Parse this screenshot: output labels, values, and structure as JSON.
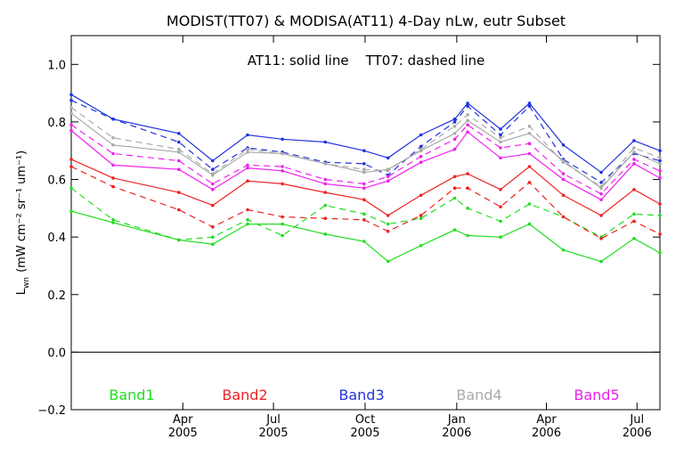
{
  "chart_data": {
    "type": "line",
    "title": "MODIST(TT07) & MODISA(AT11) 4-Day nLw, eutr Subset",
    "annotation": "AT11: solid line    TT07: dashed line",
    "ylabel_main": "L",
    "ylabel_sub": "wn",
    "ylabel_units": "(mW cm⁻² sr⁻¹ um⁻¹)",
    "ylim": [
      -0.2,
      1.1
    ],
    "yticks": [
      {
        "v": -0.2,
        "label": "−0.2"
      },
      {
        "v": 0.0,
        "label": "0.0"
      },
      {
        "v": 0.2,
        "label": "0.2"
      },
      {
        "v": 0.4,
        "label": "0.4"
      },
      {
        "v": 0.6,
        "label": "0.6"
      },
      {
        "v": 0.8,
        "label": "0.8"
      },
      {
        "v": 1.0,
        "label": "1.0"
      }
    ],
    "xlim": [
      "2004-12-10",
      "2006-07-24"
    ],
    "xticks": [
      {
        "date": "2005-04-01",
        "month": "Apr",
        "year": "2005"
      },
      {
        "date": "2005-07-01",
        "month": "Jul",
        "year": "2005"
      },
      {
        "date": "2005-10-01",
        "month": "Oct",
        "year": "2005"
      },
      {
        "date": "2006-01-01",
        "month": "Jan",
        "year": "2006"
      },
      {
        "date": "2006-04-01",
        "month": "Apr",
        "year": "2006"
      },
      {
        "date": "2006-07-01",
        "month": "Jul",
        "year": "2006"
      }
    ],
    "zero_line": 0.0,
    "series": [
      {
        "name": "Band1",
        "color": "#22dd22",
        "solid": [
          [
            "2004-12-10",
            0.49
          ],
          [
            "2005-01-21",
            0.45
          ],
          [
            "2005-03-28",
            0.39
          ],
          [
            "2005-05-01",
            0.375
          ],
          [
            "2005-06-05",
            0.445
          ],
          [
            "2005-07-10",
            0.445
          ],
          [
            "2005-08-22",
            0.41
          ],
          [
            "2005-09-30",
            0.385
          ],
          [
            "2005-10-24",
            0.315
          ],
          [
            "2005-11-26",
            0.37
          ],
          [
            "2005-12-30",
            0.425
          ],
          [
            "2006-01-12",
            0.405
          ],
          [
            "2006-02-14",
            0.4
          ],
          [
            "2006-03-15",
            0.445
          ],
          [
            "2006-04-18",
            0.355
          ],
          [
            "2006-05-26",
            0.315
          ],
          [
            "2006-06-28",
            0.395
          ],
          [
            "2006-07-24",
            0.345
          ]
        ],
        "dashed": [
          [
            "2004-12-10",
            0.57
          ],
          [
            "2005-01-21",
            0.46
          ],
          [
            "2005-03-28",
            0.39
          ],
          [
            "2005-05-01",
            0.4
          ],
          [
            "2005-06-05",
            0.46
          ],
          [
            "2005-07-10",
            0.405
          ],
          [
            "2005-08-22",
            0.51
          ],
          [
            "2005-09-30",
            0.48
          ],
          [
            "2005-10-24",
            0.445
          ],
          [
            "2005-11-26",
            0.465
          ],
          [
            "2005-12-30",
            0.535
          ],
          [
            "2006-01-12",
            0.5
          ],
          [
            "2006-02-14",
            0.455
          ],
          [
            "2006-03-15",
            0.515
          ],
          [
            "2006-04-18",
            0.47
          ],
          [
            "2006-05-26",
            0.4
          ],
          [
            "2006-06-28",
            0.48
          ],
          [
            "2006-07-24",
            0.475
          ]
        ]
      },
      {
        "name": "Band2",
        "color": "#ee2222",
        "solid": [
          [
            "2004-12-10",
            0.67
          ],
          [
            "2005-01-21",
            0.605
          ],
          [
            "2005-03-28",
            0.555
          ],
          [
            "2005-05-01",
            0.51
          ],
          [
            "2005-06-05",
            0.595
          ],
          [
            "2005-07-10",
            0.585
          ],
          [
            "2005-08-22",
            0.555
          ],
          [
            "2005-09-30",
            0.53
          ],
          [
            "2005-10-24",
            0.475
          ],
          [
            "2005-11-26",
            0.545
          ],
          [
            "2005-12-30",
            0.61
          ],
          [
            "2006-01-12",
            0.62
          ],
          [
            "2006-02-14",
            0.565
          ],
          [
            "2006-03-15",
            0.645
          ],
          [
            "2006-04-18",
            0.545
          ],
          [
            "2006-05-26",
            0.475
          ],
          [
            "2006-06-28",
            0.565
          ],
          [
            "2006-07-24",
            0.515
          ]
        ],
        "dashed": [
          [
            "2004-12-10",
            0.645
          ],
          [
            "2005-01-21",
            0.575
          ],
          [
            "2005-03-28",
            0.495
          ],
          [
            "2005-05-01",
            0.435
          ],
          [
            "2005-06-05",
            0.495
          ],
          [
            "2005-07-10",
            0.47
          ],
          [
            "2005-08-22",
            0.465
          ],
          [
            "2005-09-30",
            0.46
          ],
          [
            "2005-10-24",
            0.42
          ],
          [
            "2005-11-26",
            0.475
          ],
          [
            "2005-12-30",
            0.57
          ],
          [
            "2006-01-12",
            0.57
          ],
          [
            "2006-02-14",
            0.505
          ],
          [
            "2006-03-15",
            0.59
          ],
          [
            "2006-04-18",
            0.47
          ],
          [
            "2006-05-26",
            0.395
          ],
          [
            "2006-06-28",
            0.455
          ],
          [
            "2006-07-24",
            0.41
          ]
        ]
      },
      {
        "name": "Band3",
        "color": "#2233dd",
        "solid": [
          [
            "2004-12-10",
            0.895
          ],
          [
            "2005-01-21",
            0.81
          ],
          [
            "2005-03-28",
            0.76
          ],
          [
            "2005-05-01",
            0.665
          ],
          [
            "2005-06-05",
            0.755
          ],
          [
            "2005-07-10",
            0.74
          ],
          [
            "2005-08-22",
            0.73
          ],
          [
            "2005-09-30",
            0.7
          ],
          [
            "2005-10-24",
            0.675
          ],
          [
            "2005-11-26",
            0.755
          ],
          [
            "2005-12-30",
            0.81
          ],
          [
            "2006-01-12",
            0.865
          ],
          [
            "2006-02-14",
            0.775
          ],
          [
            "2006-03-15",
            0.865
          ],
          [
            "2006-04-18",
            0.72
          ],
          [
            "2006-05-26",
            0.625
          ],
          [
            "2006-06-28",
            0.735
          ],
          [
            "2006-07-24",
            0.7
          ]
        ],
        "dashed": [
          [
            "2004-12-10",
            0.875
          ],
          [
            "2005-01-21",
            0.81
          ],
          [
            "2005-03-28",
            0.73
          ],
          [
            "2005-05-01",
            0.635
          ],
          [
            "2005-06-05",
            0.71
          ],
          [
            "2005-07-10",
            0.695
          ],
          [
            "2005-08-22",
            0.66
          ],
          [
            "2005-09-30",
            0.655
          ],
          [
            "2005-10-24",
            0.615
          ],
          [
            "2005-11-26",
            0.715
          ],
          [
            "2005-12-30",
            0.8
          ],
          [
            "2006-01-12",
            0.855
          ],
          [
            "2006-02-14",
            0.755
          ],
          [
            "2006-03-15",
            0.855
          ],
          [
            "2006-04-18",
            0.67
          ],
          [
            "2006-05-26",
            0.59
          ],
          [
            "2006-06-28",
            0.69
          ],
          [
            "2006-07-24",
            0.665
          ]
        ]
      },
      {
        "name": "Band4",
        "color": "#aaaaaa",
        "solid": [
          [
            "2004-12-10",
            0.83
          ],
          [
            "2005-01-21",
            0.72
          ],
          [
            "2005-03-28",
            0.695
          ],
          [
            "2005-05-01",
            0.615
          ],
          [
            "2005-06-05",
            0.695
          ],
          [
            "2005-07-10",
            0.69
          ],
          [
            "2005-08-22",
            0.655
          ],
          [
            "2005-09-30",
            0.625
          ],
          [
            "2005-10-24",
            0.635
          ],
          [
            "2005-11-26",
            0.7
          ],
          [
            "2005-12-30",
            0.76
          ],
          [
            "2006-01-12",
            0.805
          ],
          [
            "2006-02-14",
            0.73
          ],
          [
            "2006-03-15",
            0.76
          ],
          [
            "2006-04-18",
            0.665
          ],
          [
            "2006-05-26",
            0.57
          ],
          [
            "2006-06-28",
            0.695
          ],
          [
            "2006-07-24",
            0.655
          ]
        ],
        "dashed": [
          [
            "2004-12-10",
            0.85
          ],
          [
            "2005-01-21",
            0.745
          ],
          [
            "2005-03-28",
            0.705
          ],
          [
            "2005-05-01",
            0.62
          ],
          [
            "2005-06-05",
            0.705
          ],
          [
            "2005-07-10",
            0.69
          ],
          [
            "2005-08-22",
            0.655
          ],
          [
            "2005-09-30",
            0.635
          ],
          [
            "2005-10-24",
            0.63
          ],
          [
            "2005-11-26",
            0.705
          ],
          [
            "2005-12-30",
            0.785
          ],
          [
            "2006-01-12",
            0.825
          ],
          [
            "2006-02-14",
            0.745
          ],
          [
            "2006-03-15",
            0.785
          ],
          [
            "2006-04-18",
            0.66
          ],
          [
            "2006-05-26",
            0.575
          ],
          [
            "2006-06-28",
            0.71
          ],
          [
            "2006-07-24",
            0.675
          ]
        ]
      },
      {
        "name": "Band5",
        "color": "#ee22ee",
        "solid": [
          [
            "2004-12-10",
            0.77
          ],
          [
            "2005-01-21",
            0.65
          ],
          [
            "2005-03-28",
            0.635
          ],
          [
            "2005-05-01",
            0.565
          ],
          [
            "2005-06-05",
            0.64
          ],
          [
            "2005-07-10",
            0.63
          ],
          [
            "2005-08-22",
            0.585
          ],
          [
            "2005-09-30",
            0.57
          ],
          [
            "2005-10-24",
            0.595
          ],
          [
            "2005-11-26",
            0.66
          ],
          [
            "2005-12-30",
            0.705
          ],
          [
            "2006-01-12",
            0.765
          ],
          [
            "2006-02-14",
            0.675
          ],
          [
            "2006-03-15",
            0.69
          ],
          [
            "2006-04-18",
            0.6
          ],
          [
            "2006-05-26",
            0.53
          ],
          [
            "2006-06-28",
            0.655
          ],
          [
            "2006-07-24",
            0.605
          ]
        ],
        "dashed": [
          [
            "2004-12-10",
            0.79
          ],
          [
            "2005-01-21",
            0.69
          ],
          [
            "2005-03-28",
            0.665
          ],
          [
            "2005-05-01",
            0.585
          ],
          [
            "2005-06-05",
            0.65
          ],
          [
            "2005-07-10",
            0.645
          ],
          [
            "2005-08-22",
            0.6
          ],
          [
            "2005-09-30",
            0.585
          ],
          [
            "2005-10-24",
            0.61
          ],
          [
            "2005-11-26",
            0.68
          ],
          [
            "2005-12-30",
            0.74
          ],
          [
            "2006-01-12",
            0.79
          ],
          [
            "2006-02-14",
            0.71
          ],
          [
            "2006-03-15",
            0.725
          ],
          [
            "2006-04-18",
            0.62
          ],
          [
            "2006-05-26",
            0.55
          ],
          [
            "2006-06-28",
            0.67
          ],
          [
            "2006-07-24",
            0.63
          ]
        ]
      }
    ]
  }
}
